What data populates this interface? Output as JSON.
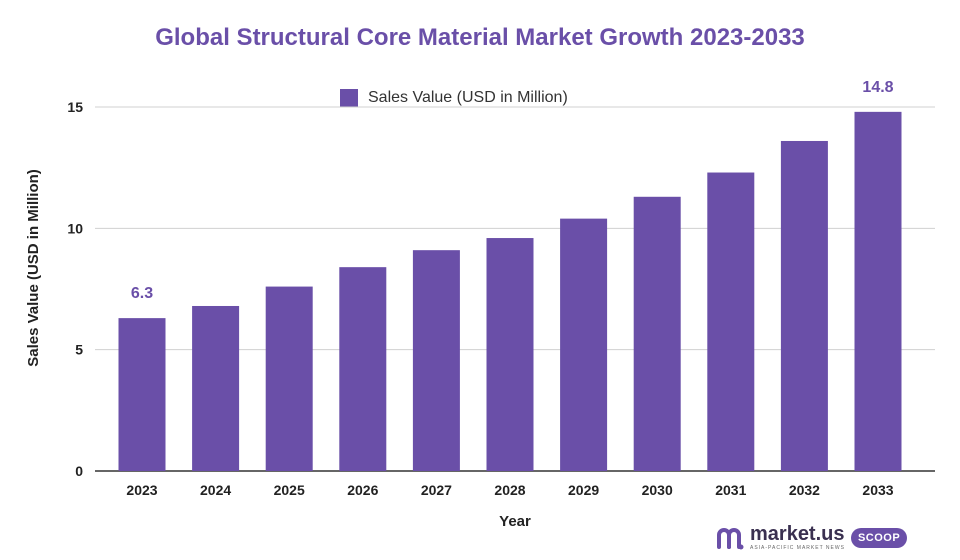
{
  "colors": {
    "bar": "#6a4fa8",
    "title": "#6a4fa8",
    "grid": "#d0d0d0",
    "axis_text": "#222222"
  },
  "chart_data": {
    "type": "bar",
    "title": "Global Structural Core Material Market Growth 2023-2033",
    "xlabel": "Year",
    "ylabel": "Sales Value (USD in Million)",
    "ylim": [
      0,
      16
    ],
    "yticks": [
      0,
      5,
      10,
      15
    ],
    "grid": true,
    "legend_position": "top-center",
    "categories": [
      "2023",
      "2024",
      "2025",
      "2026",
      "2027",
      "2028",
      "2029",
      "2030",
      "2031",
      "2032",
      "2033"
    ],
    "series": [
      {
        "name": "Sales Value (USD in Million)",
        "values": [
          6.3,
          6.8,
          7.6,
          8.4,
          9.1,
          9.6,
          10.4,
          11.3,
          12.3,
          13.6,
          14.8
        ]
      }
    ],
    "data_labels": [
      {
        "category": "2023",
        "text": "6.3"
      },
      {
        "category": "2033",
        "text": "14.8"
      }
    ]
  },
  "brand": {
    "name": "market.us",
    "tagline": "ASIA-PACIFIC MARKET NEWS",
    "badge": "SCOOP",
    "logo_icon": "market-us-logo-icon"
  }
}
